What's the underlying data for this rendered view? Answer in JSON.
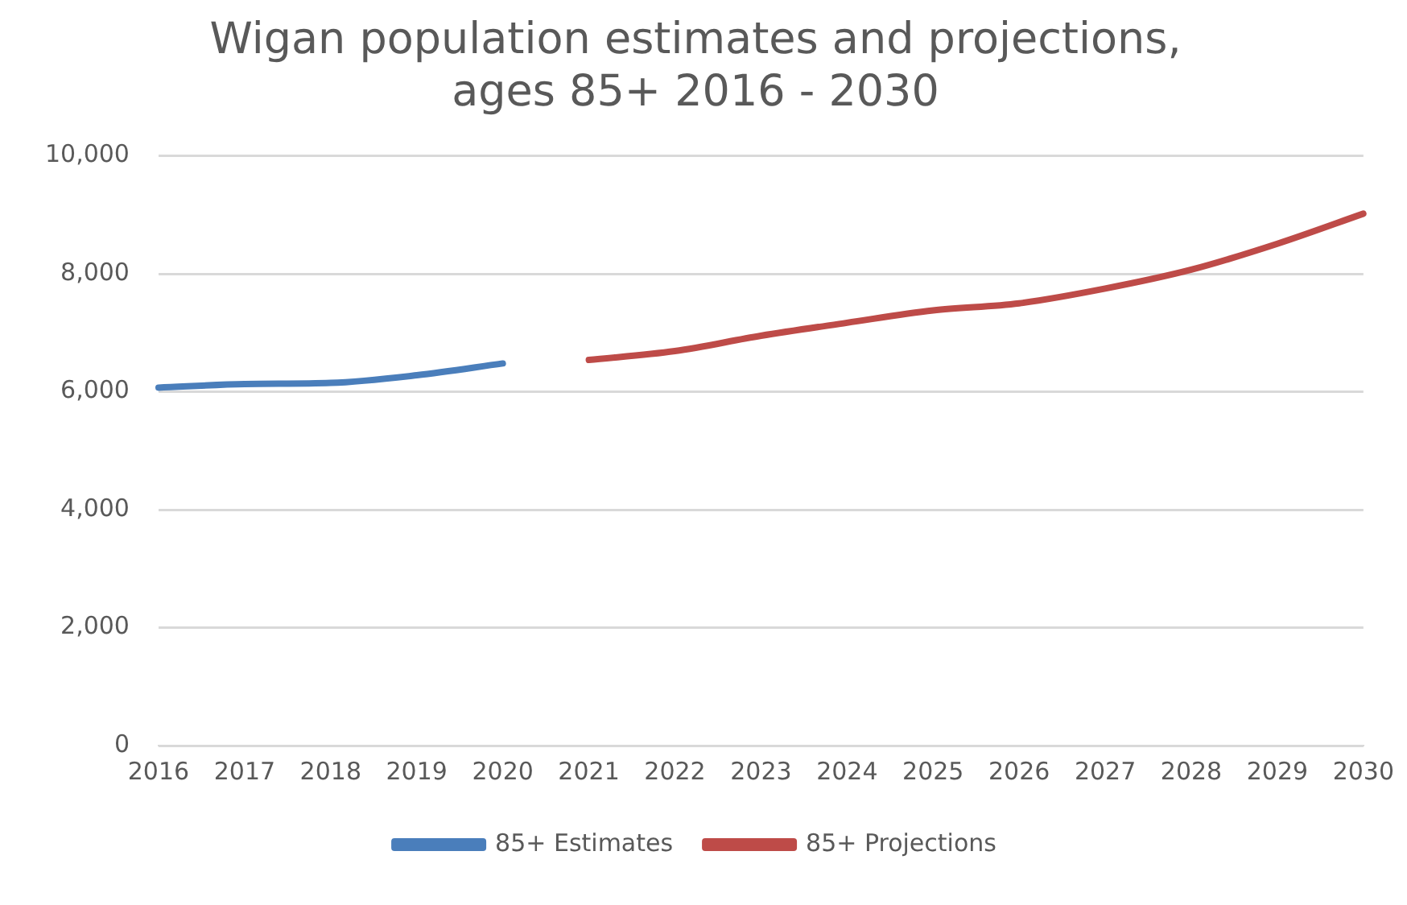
{
  "chart_data": {
    "type": "line",
    "title": [
      "Wigan population estimates and projections,",
      "ages 85+ 2016 - 2030"
    ],
    "categories": [
      "2016",
      "2017",
      "2018",
      "2019",
      "2020",
      "2021",
      "2022",
      "2023",
      "2024",
      "2025",
      "2026",
      "2027",
      "2028",
      "2029",
      "2030"
    ],
    "series": [
      {
        "name": "85+ Estimates",
        "color": "#4a7ebb",
        "values": [
          6070,
          6130,
          6150,
          6280,
          6480,
          null,
          null,
          null,
          null,
          null,
          null,
          null,
          null,
          null,
          null
        ]
      },
      {
        "name": "85+ Projections",
        "color": "#be4b48",
        "values": [
          null,
          null,
          null,
          null,
          null,
          6540,
          6690,
          6950,
          7170,
          7380,
          7500,
          7750,
          8070,
          8510,
          9020
        ]
      }
    ],
    "ylim": [
      0,
      10000
    ],
    "yticks": [
      0,
      {
        "value": 2000,
        "label": "2,000"
      },
      {
        "value": 4000,
        "label": "4,000"
      },
      {
        "value": 6000,
        "label": "6,000"
      },
      {
        "value": 8000,
        "label": "8,000"
      },
      {
        "value": 10000,
        "label": "10,000"
      }
    ],
    "grid": "y",
    "legend": "bottom",
    "marker": "none",
    "line_style": "solid"
  }
}
